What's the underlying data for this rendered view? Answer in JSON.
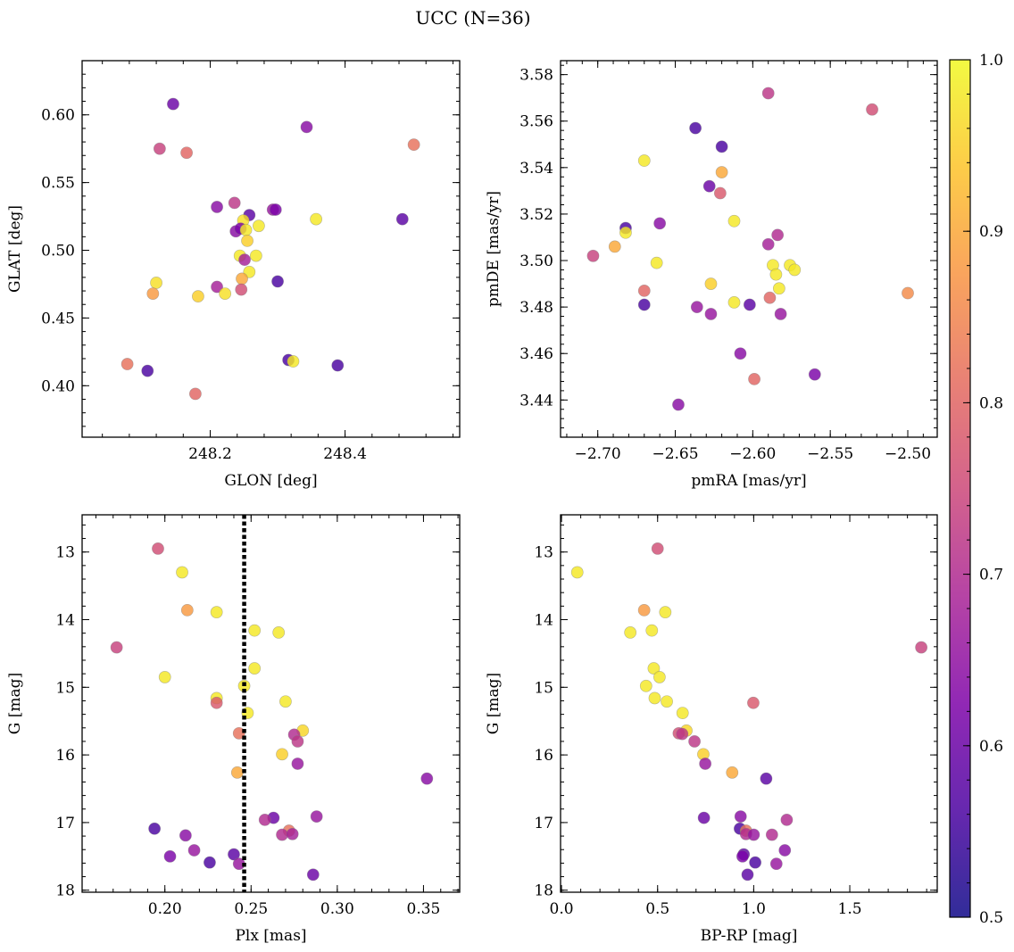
{
  "figure": {
    "title": "UCC (N=36)",
    "colorbar": {
      "min": 0.5,
      "max": 1.0,
      "ticks": [
        0.5,
        0.6,
        0.7,
        0.8,
        0.9,
        1.0
      ],
      "tick_labels": [
        "0.5",
        "0.6",
        "0.7",
        "0.8",
        "0.9",
        "1.0"
      ],
      "colormap": "plasma"
    }
  },
  "chart_data": [
    {
      "type": "scatter",
      "id": "glon-glat",
      "xlabel": "GLON [deg]",
      "ylabel": "GLAT [deg]",
      "xlim": [
        248.01,
        248.57
      ],
      "ylim": [
        0.362,
        0.64
      ],
      "y_inverted": false,
      "xticks": [
        248.2,
        248.4
      ],
      "xtick_labels": [
        "248.2",
        "248.4"
      ],
      "yticks": [
        0.4,
        0.45,
        0.5,
        0.55,
        0.6
      ],
      "ytick_labels": [
        "0.40",
        "0.45",
        "0.50",
        "0.55",
        "0.60"
      ],
      "points": [
        {
          "x": 248.145,
          "y": 0.608,
          "c": 0.6
        },
        {
          "x": 248.125,
          "y": 0.575,
          "c": 0.74
        },
        {
          "x": 248.165,
          "y": 0.572,
          "c": 0.8
        },
        {
          "x": 248.343,
          "y": 0.591,
          "c": 0.64
        },
        {
          "x": 248.502,
          "y": 0.578,
          "c": 0.82
        },
        {
          "x": 248.21,
          "y": 0.532,
          "c": 0.64
        },
        {
          "x": 248.236,
          "y": 0.535,
          "c": 0.72
        },
        {
          "x": 248.258,
          "y": 0.526,
          "c": 0.58
        },
        {
          "x": 248.293,
          "y": 0.53,
          "c": 0.66
        },
        {
          "x": 248.297,
          "y": 0.53,
          "c": 0.62
        },
        {
          "x": 248.249,
          "y": 0.522,
          "c": 0.97
        },
        {
          "x": 248.357,
          "y": 0.523,
          "c": 0.98
        },
        {
          "x": 248.485,
          "y": 0.523,
          "c": 0.58
        },
        {
          "x": 248.272,
          "y": 0.518,
          "c": 0.98
        },
        {
          "x": 248.238,
          "y": 0.514,
          "c": 0.64
        },
        {
          "x": 248.245,
          "y": 0.516,
          "c": 0.62
        },
        {
          "x": 248.253,
          "y": 0.515,
          "c": 0.98
        },
        {
          "x": 248.255,
          "y": 0.507,
          "c": 0.95
        },
        {
          "x": 248.244,
          "y": 0.496,
          "c": 0.98
        },
        {
          "x": 248.268,
          "y": 0.496,
          "c": 0.98
        },
        {
          "x": 248.251,
          "y": 0.493,
          "c": 0.68
        },
        {
          "x": 248.258,
          "y": 0.484,
          "c": 0.98
        },
        {
          "x": 248.247,
          "y": 0.479,
          "c": 0.9
        },
        {
          "x": 248.3,
          "y": 0.477,
          "c": 0.56
        },
        {
          "x": 248.12,
          "y": 0.476,
          "c": 0.97
        },
        {
          "x": 248.21,
          "y": 0.473,
          "c": 0.68
        },
        {
          "x": 248.246,
          "y": 0.471,
          "c": 0.76
        },
        {
          "x": 248.115,
          "y": 0.468,
          "c": 0.88
        },
        {
          "x": 248.222,
          "y": 0.468,
          "c": 0.97
        },
        {
          "x": 248.182,
          "y": 0.466,
          "c": 0.95
        },
        {
          "x": 248.077,
          "y": 0.416,
          "c": 0.82
        },
        {
          "x": 248.316,
          "y": 0.419,
          "c": 0.56
        },
        {
          "x": 248.323,
          "y": 0.418,
          "c": 0.98
        },
        {
          "x": 248.389,
          "y": 0.415,
          "c": 0.56
        },
        {
          "x": 248.107,
          "y": 0.411,
          "c": 0.56
        },
        {
          "x": 248.178,
          "y": 0.394,
          "c": 0.8
        }
      ]
    },
    {
      "type": "scatter",
      "id": "pmra-pmde",
      "xlabel": "pmRA [mas/yr]",
      "ylabel": "pmDE [mas/yr]",
      "xlim": [
        -2.724,
        -2.481
      ],
      "ylim": [
        3.424,
        3.586
      ],
      "y_inverted": false,
      "xticks": [
        -2.7,
        -2.65,
        -2.6,
        -2.55,
        -2.5
      ],
      "xtick_labels": [
        "−2.70",
        "−2.65",
        "−2.60",
        "−2.55",
        "−2.50"
      ],
      "yticks": [
        3.44,
        3.46,
        3.48,
        3.5,
        3.52,
        3.54,
        3.56,
        3.58
      ],
      "ytick_labels": [
        "3.44",
        "3.46",
        "3.48",
        "3.50",
        "3.52",
        "3.54",
        "3.56",
        "3.58"
      ],
      "points": [
        {
          "x": -2.59,
          "y": 3.572,
          "c": 0.72
        },
        {
          "x": -2.523,
          "y": 3.565,
          "c": 0.76
        },
        {
          "x": -2.637,
          "y": 3.557,
          "c": 0.56
        },
        {
          "x": -2.62,
          "y": 3.549,
          "c": 0.56
        },
        {
          "x": -2.67,
          "y": 3.543,
          "c": 0.98
        },
        {
          "x": -2.62,
          "y": 3.538,
          "c": 0.9
        },
        {
          "x": -2.628,
          "y": 3.532,
          "c": 0.6
        },
        {
          "x": -2.621,
          "y": 3.529,
          "c": 0.78
        },
        {
          "x": -2.612,
          "y": 3.517,
          "c": 0.98
        },
        {
          "x": -2.66,
          "y": 3.516,
          "c": 0.64
        },
        {
          "x": -2.682,
          "y": 3.514,
          "c": 0.56
        },
        {
          "x": -2.682,
          "y": 3.512,
          "c": 0.98
        },
        {
          "x": -2.584,
          "y": 3.511,
          "c": 0.7
        },
        {
          "x": -2.59,
          "y": 3.507,
          "c": 0.68
        },
        {
          "x": -2.689,
          "y": 3.506,
          "c": 0.9
        },
        {
          "x": -2.703,
          "y": 3.502,
          "c": 0.74
        },
        {
          "x": -2.662,
          "y": 3.499,
          "c": 0.98
        },
        {
          "x": -2.576,
          "y": 3.498,
          "c": 0.98
        },
        {
          "x": -2.587,
          "y": 3.498,
          "c": 0.98
        },
        {
          "x": -2.573,
          "y": 3.496,
          "c": 0.98
        },
        {
          "x": -2.585,
          "y": 3.494,
          "c": 0.98
        },
        {
          "x": -2.627,
          "y": 3.49,
          "c": 0.95
        },
        {
          "x": -2.583,
          "y": 3.488,
          "c": 0.98
        },
        {
          "x": -2.67,
          "y": 3.487,
          "c": 0.8
        },
        {
          "x": -2.5,
          "y": 3.486,
          "c": 0.86
        },
        {
          "x": -2.589,
          "y": 3.484,
          "c": 0.8
        },
        {
          "x": -2.612,
          "y": 3.482,
          "c": 0.98
        },
        {
          "x": -2.67,
          "y": 3.481,
          "c": 0.56
        },
        {
          "x": -2.602,
          "y": 3.481,
          "c": 0.58
        },
        {
          "x": -2.636,
          "y": 3.48,
          "c": 0.66
        },
        {
          "x": -2.582,
          "y": 3.477,
          "c": 0.66
        },
        {
          "x": -2.627,
          "y": 3.477,
          "c": 0.66
        },
        {
          "x": -2.608,
          "y": 3.46,
          "c": 0.64
        },
        {
          "x": -2.56,
          "y": 3.451,
          "c": 0.62
        },
        {
          "x": -2.599,
          "y": 3.449,
          "c": 0.8
        },
        {
          "x": -2.648,
          "y": 3.438,
          "c": 0.64
        }
      ]
    },
    {
      "type": "scatter",
      "id": "plx-g",
      "xlabel": "Plx [mas]",
      "ylabel": "G [mag]",
      "xlim": [
        0.152,
        0.371
      ],
      "ylim": [
        12.45,
        18.03
      ],
      "y_inverted": true,
      "xticks": [
        0.2,
        0.25,
        0.3,
        0.35
      ],
      "xtick_labels": [
        "0.20",
        "0.25",
        "0.30",
        "0.35"
      ],
      "yticks": [
        13,
        14,
        15,
        16,
        17,
        18
      ],
      "ytick_labels": [
        "13",
        "14",
        "15",
        "16",
        "17",
        "18"
      ],
      "vline": {
        "x": 0.246,
        "style": "dotted"
      },
      "points": [
        {
          "x": 0.196,
          "y": 12.95,
          "c": 0.76
        },
        {
          "x": 0.21,
          "y": 13.3,
          "c": 0.98
        },
        {
          "x": 0.213,
          "y": 13.86,
          "c": 0.88
        },
        {
          "x": 0.23,
          "y": 13.89,
          "c": 0.98
        },
        {
          "x": 0.252,
          "y": 14.16,
          "c": 0.98
        },
        {
          "x": 0.266,
          "y": 14.19,
          "c": 0.98
        },
        {
          "x": 0.172,
          "y": 14.41,
          "c": 0.74
        },
        {
          "x": 0.252,
          "y": 14.72,
          "c": 0.98
        },
        {
          "x": 0.2,
          "y": 14.85,
          "c": 0.98
        },
        {
          "x": 0.246,
          "y": 14.98,
          "c": 0.98
        },
        {
          "x": 0.23,
          "y": 15.16,
          "c": 0.98
        },
        {
          "x": 0.23,
          "y": 15.23,
          "c": 0.78
        },
        {
          "x": 0.27,
          "y": 15.21,
          "c": 0.98
        },
        {
          "x": 0.248,
          "y": 15.38,
          "c": 0.98
        },
        {
          "x": 0.28,
          "y": 15.64,
          "c": 0.96
        },
        {
          "x": 0.243,
          "y": 15.68,
          "c": 0.82
        },
        {
          "x": 0.275,
          "y": 15.7,
          "c": 0.7
        },
        {
          "x": 0.277,
          "y": 15.8,
          "c": 0.72
        },
        {
          "x": 0.268,
          "y": 15.99,
          "c": 0.95
        },
        {
          "x": 0.277,
          "y": 16.13,
          "c": 0.66
        },
        {
          "x": 0.242,
          "y": 16.26,
          "c": 0.9
        },
        {
          "x": 0.352,
          "y": 16.35,
          "c": 0.64
        },
        {
          "x": 0.288,
          "y": 16.91,
          "c": 0.66
        },
        {
          "x": 0.263,
          "y": 16.93,
          "c": 0.6
        },
        {
          "x": 0.258,
          "y": 16.96,
          "c": 0.7
        },
        {
          "x": 0.194,
          "y": 17.09,
          "c": 0.56
        },
        {
          "x": 0.272,
          "y": 17.12,
          "c": 0.82
        },
        {
          "x": 0.268,
          "y": 17.18,
          "c": 0.7
        },
        {
          "x": 0.274,
          "y": 17.17,
          "c": 0.68
        },
        {
          "x": 0.212,
          "y": 17.19,
          "c": 0.64
        },
        {
          "x": 0.217,
          "y": 17.41,
          "c": 0.66
        },
        {
          "x": 0.203,
          "y": 17.5,
          "c": 0.62
        },
        {
          "x": 0.24,
          "y": 17.47,
          "c": 0.58
        },
        {
          "x": 0.226,
          "y": 17.59,
          "c": 0.56
        },
        {
          "x": 0.243,
          "y": 17.61,
          "c": 0.66
        },
        {
          "x": 0.286,
          "y": 17.77,
          "c": 0.6
        }
      ]
    },
    {
      "type": "scatter",
      "id": "bprp-g",
      "xlabel": "BP-RP [mag]",
      "ylabel": "G [mag]",
      "xlim": [
        -0.005,
        1.955
      ],
      "ylim": [
        12.45,
        18.03
      ],
      "y_inverted": true,
      "xticks": [
        0.0,
        0.5,
        1.0,
        1.5
      ],
      "xtick_labels": [
        "0.0",
        "0.5",
        "1.0",
        "1.5"
      ],
      "yticks": [
        13,
        14,
        15,
        16,
        17,
        18
      ],
      "ytick_labels": [
        "13",
        "14",
        "15",
        "16",
        "17",
        "18"
      ],
      "points": [
        {
          "x": 0.5,
          "y": 12.95,
          "c": 0.76
        },
        {
          "x": 0.082,
          "y": 13.3,
          "c": 0.98
        },
        {
          "x": 0.43,
          "y": 13.86,
          "c": 0.88
        },
        {
          "x": 0.54,
          "y": 13.89,
          "c": 0.98
        },
        {
          "x": 0.47,
          "y": 14.16,
          "c": 0.98
        },
        {
          "x": 0.358,
          "y": 14.19,
          "c": 0.98
        },
        {
          "x": 1.872,
          "y": 14.41,
          "c": 0.74
        },
        {
          "x": 0.48,
          "y": 14.72,
          "c": 0.98
        },
        {
          "x": 0.51,
          "y": 14.85,
          "c": 0.98
        },
        {
          "x": 0.44,
          "y": 14.98,
          "c": 0.98
        },
        {
          "x": 0.485,
          "y": 15.16,
          "c": 0.98
        },
        {
          "x": 0.998,
          "y": 15.23,
          "c": 0.78
        },
        {
          "x": 0.548,
          "y": 15.21,
          "c": 0.98
        },
        {
          "x": 0.63,
          "y": 15.38,
          "c": 0.98
        },
        {
          "x": 0.65,
          "y": 15.64,
          "c": 0.96
        },
        {
          "x": 0.61,
          "y": 15.68,
          "c": 0.76
        },
        {
          "x": 0.628,
          "y": 15.69,
          "c": 0.72
        },
        {
          "x": 0.692,
          "y": 15.8,
          "c": 0.72
        },
        {
          "x": 0.738,
          "y": 15.99,
          "c": 0.95
        },
        {
          "x": 0.748,
          "y": 16.13,
          "c": 0.66
        },
        {
          "x": 0.888,
          "y": 16.26,
          "c": 0.9
        },
        {
          "x": 1.065,
          "y": 16.35,
          "c": 0.58
        },
        {
          "x": 0.932,
          "y": 16.91,
          "c": 0.64
        },
        {
          "x": 0.741,
          "y": 16.93,
          "c": 0.6
        },
        {
          "x": 1.172,
          "y": 16.96,
          "c": 0.7
        },
        {
          "x": 0.928,
          "y": 17.09,
          "c": 0.56
        },
        {
          "x": 0.96,
          "y": 17.12,
          "c": 0.82
        },
        {
          "x": 0.96,
          "y": 17.17,
          "c": 0.7
        },
        {
          "x": 1.0,
          "y": 17.18,
          "c": 0.66
        },
        {
          "x": 1.095,
          "y": 17.18,
          "c": 0.7
        },
        {
          "x": 1.162,
          "y": 17.41,
          "c": 0.64
        },
        {
          "x": 0.948,
          "y": 17.47,
          "c": 0.58
        },
        {
          "x": 0.942,
          "y": 17.5,
          "c": 0.62
        },
        {
          "x": 1.008,
          "y": 17.59,
          "c": 0.56
        },
        {
          "x": 1.118,
          "y": 17.61,
          "c": 0.66
        },
        {
          "x": 0.968,
          "y": 17.77,
          "c": 0.58
        }
      ]
    }
  ]
}
